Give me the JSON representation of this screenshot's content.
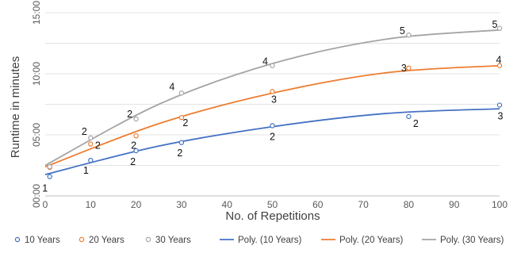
{
  "chart_data": {
    "type": "scatter",
    "xlabel": "No. of Repetitions",
    "ylabel": "Runtime in minutes",
    "xlim": [
      0,
      100
    ],
    "ylim": [
      0,
      900
    ],
    "x_ticks": [
      0,
      10,
      20,
      30,
      40,
      50,
      60,
      70,
      80,
      90,
      100
    ],
    "y_ticks": [
      {
        "value": 0,
        "label": "00:00"
      },
      {
        "value": 300,
        "label": "05:00"
      },
      {
        "value": 600,
        "label": "10:00"
      },
      {
        "value": 900,
        "label": "15:00"
      }
    ],
    "grid": "horizontal",
    "legend_position": "bottom",
    "series": [
      {
        "name": "10 Years",
        "color": "#4472C4",
        "x": [
          1,
          10,
          20,
          30,
          50,
          80,
          100
        ],
        "y": [
          95,
          175,
          222,
          262,
          345,
          390,
          446
        ],
        "labels": [
          "1",
          "1",
          "2",
          "2",
          "2",
          "2",
          "3"
        ]
      },
      {
        "name": "20 Years",
        "color": "#ED7D31",
        "x": [
          1,
          10,
          20,
          30,
          50,
          80,
          100
        ],
        "y": [
          140,
          255,
          295,
          385,
          513,
          628,
          640
        ],
        "labels": [
          "",
          "2",
          "2",
          "2",
          "3",
          "3",
          "4"
        ]
      },
      {
        "name": "30 Years",
        "color": "#A5A5A5",
        "x": [
          1,
          10,
          20,
          30,
          50,
          80,
          100
        ],
        "y": [
          143,
          285,
          378,
          505,
          640,
          790,
          823
        ],
        "labels": [
          "",
          "2",
          "2",
          "4",
          "4",
          "5",
          "5"
        ]
      }
    ],
    "trendlines": [
      {
        "name": "Poly. (10 Years)",
        "color": "#4472C4",
        "x": [
          0,
          25,
          50,
          75,
          100
        ],
        "y": [
          105,
          245,
          340,
          405,
          428
        ]
      },
      {
        "name": "Poly. (20 Years)",
        "color": "#ED7D31",
        "x": [
          0,
          25,
          50,
          75,
          100
        ],
        "y": [
          143,
          355,
          505,
          605,
          640
        ]
      },
      {
        "name": "Poly. (30 Years)",
        "color": "#A5A5A5",
        "x": [
          0,
          25,
          50,
          75,
          100
        ],
        "y": [
          150,
          450,
          650,
          770,
          815
        ]
      }
    ]
  }
}
